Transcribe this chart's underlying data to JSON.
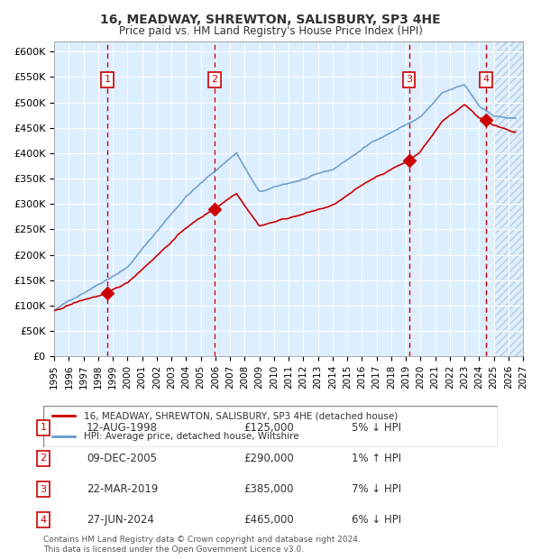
{
  "title": "16, MEADWAY, SHREWTON, SALISBURY, SP3 4HE",
  "subtitle": "Price paid vs. HM Land Registry's House Price Index (HPI)",
  "xlim": [
    1995.0,
    2027.0
  ],
  "ylim": [
    0,
    620000
  ],
  "yticks": [
    0,
    50000,
    100000,
    150000,
    200000,
    250000,
    300000,
    350000,
    400000,
    450000,
    500000,
    550000,
    600000
  ],
  "ytick_labels": [
    "£0",
    "£50K",
    "£100K",
    "£150K",
    "£200K",
    "£250K",
    "£300K",
    "£350K",
    "£400K",
    "£450K",
    "£500K",
    "£550K",
    "£600K"
  ],
  "xticks": [
    1995,
    1996,
    1997,
    1998,
    1999,
    2000,
    2001,
    2002,
    2003,
    2004,
    2005,
    2006,
    2007,
    2008,
    2009,
    2010,
    2011,
    2012,
    2013,
    2014,
    2015,
    2016,
    2017,
    2018,
    2019,
    2020,
    2021,
    2022,
    2023,
    2024,
    2025,
    2026,
    2027
  ],
  "sales": [
    {
      "label": "1",
      "date": "12-AUG-1998",
      "year": 1998.617,
      "price": 125000,
      "hpi_pct": "5% ↓ HPI"
    },
    {
      "label": "2",
      "date": "09-DEC-2005",
      "year": 2005.942,
      "price": 290000,
      "hpi_pct": "1% ↑ HPI"
    },
    {
      "label": "3",
      "date": "22-MAR-2019",
      "year": 2019.222,
      "price": 385000,
      "hpi_pct": "7% ↓ HPI"
    },
    {
      "label": "4",
      "date": "27-JUN-2024",
      "year": 2024.492,
      "price": 465000,
      "hpi_pct": "6% ↓ HPI"
    }
  ],
  "red_line_color": "#cc0000",
  "blue_line_color": "#6699cc",
  "bg_color": "#ddeeff",
  "hatch_color": "#bbccdd",
  "grid_color": "#ffffff",
  "vline_color": "#cc0000",
  "sale_marker_color": "#cc0000",
  "legend_label_red": "16, MEADWAY, SHREWTON, SALISBURY, SP3 4HE (detached house)",
  "legend_label_blue": "HPI: Average price, detached house, Wiltshire",
  "footer": "Contains HM Land Registry data © Crown copyright and database right 2024.\nThis data is licensed under the Open Government Licence v3.0.",
  "future_start": 2025.0
}
